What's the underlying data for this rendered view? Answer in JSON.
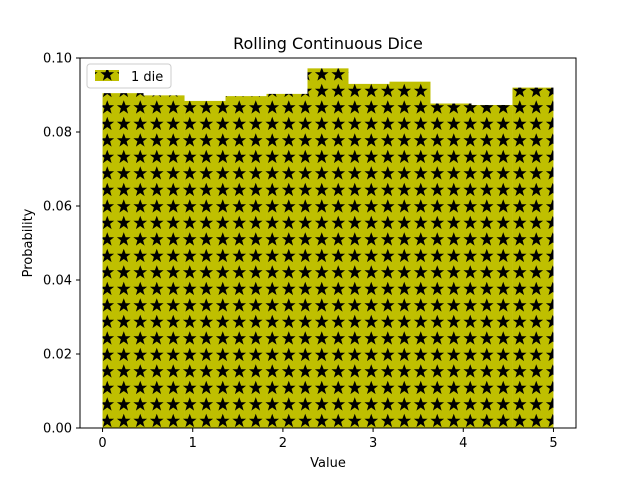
{
  "chart_data": {
    "type": "bar",
    "title": "Rolling Continuous Dice",
    "xlabel": "Value",
    "ylabel": "Probability",
    "xlim": [
      -0.25,
      5.25
    ],
    "ylim": [
      0.0,
      0.1
    ],
    "xticks": [
      "0",
      "1",
      "2",
      "3",
      "4",
      "5"
    ],
    "yticks": [
      "0.00",
      "0.02",
      "0.04",
      "0.06",
      "0.08",
      "0.10"
    ],
    "bin_edges": [
      0.0,
      0.4545,
      0.9091,
      1.3636,
      1.8182,
      2.2727,
      2.7273,
      3.1818,
      3.6364,
      4.0909,
      4.5455,
      5.0
    ],
    "series": [
      {
        "name": "1 die",
        "values": [
          0.0905,
          0.0899,
          0.0884,
          0.0897,
          0.0903,
          0.0972,
          0.093,
          0.0936,
          0.0877,
          0.0873,
          0.092
        ]
      }
    ],
    "bar_color": "#bfbf00",
    "hatch": "stars",
    "legend_position": "upper left",
    "grid": false
  }
}
